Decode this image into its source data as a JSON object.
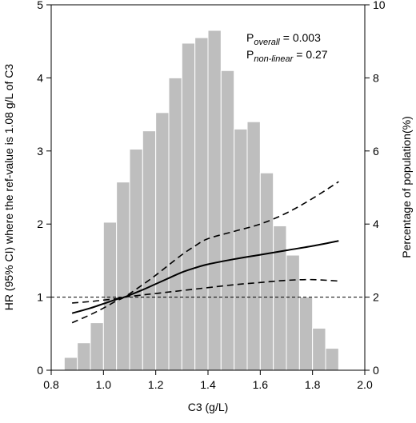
{
  "chart_data": {
    "type": "bar",
    "xlabel": "C3 (g/L)",
    "ylabel_left": "HR (95% CI) where the ref-value is 1.08 g/L of C3",
    "ylabel_right": "Percentage of population(%)",
    "xlim": [
      0.8,
      2.0
    ],
    "ylim_left": [
      0,
      5
    ],
    "ylim_right": [
      0,
      10
    ],
    "x_ticks": [
      "0.8",
      "1.0",
      "1.2",
      "1.4",
      "1.6",
      "1.8",
      "2.0"
    ],
    "y_ticks_left": [
      "0",
      "1",
      "2",
      "3",
      "4",
      "5"
    ],
    "y_ticks_right": [
      "0",
      "2",
      "4",
      "6",
      "8",
      "10"
    ],
    "reference_line_hr": 1,
    "histogram": {
      "axis": "right",
      "color": "#bebebe",
      "bin_width": 0.05,
      "bin_centers": [
        0.875,
        0.925,
        0.975,
        1.025,
        1.075,
        1.125,
        1.175,
        1.225,
        1.275,
        1.325,
        1.375,
        1.425,
        1.475,
        1.525,
        1.575,
        1.625,
        1.675,
        1.725,
        1.775,
        1.825,
        1.875
      ],
      "values": [
        0.35,
        0.75,
        1.3,
        4.05,
        5.15,
        6.05,
        6.55,
        7.05,
        8.0,
        8.95,
        9.1,
        9.3,
        8.2,
        6.6,
        6.8,
        5.4,
        3.95,
        3.15,
        2.0,
        1.15,
        0.6
      ]
    },
    "series": [
      {
        "style": "solid",
        "axis": "left",
        "x": [
          0.88,
          0.95,
          1.0,
          1.05,
          1.08,
          1.15,
          1.2,
          1.25,
          1.3,
          1.35,
          1.4,
          1.5,
          1.6,
          1.7,
          1.8,
          1.9
        ],
        "y": [
          0.78,
          0.85,
          0.91,
          0.97,
          1.0,
          1.1,
          1.18,
          1.26,
          1.34,
          1.4,
          1.45,
          1.52,
          1.58,
          1.64,
          1.7,
          1.77
        ]
      },
      {
        "style": "dashed",
        "axis": "left",
        "x": [
          0.88,
          0.95,
          1.0,
          1.05,
          1.08,
          1.15,
          1.2,
          1.25,
          1.3,
          1.35,
          1.4,
          1.5,
          1.6,
          1.7,
          1.8,
          1.9
        ],
        "y": [
          0.65,
          0.76,
          0.85,
          0.95,
          1.0,
          1.17,
          1.3,
          1.44,
          1.58,
          1.7,
          1.8,
          1.9,
          2.0,
          2.15,
          2.35,
          2.58
        ]
      },
      {
        "style": "dashed",
        "axis": "left",
        "x": [
          0.88,
          0.95,
          1.0,
          1.05,
          1.08,
          1.15,
          1.2,
          1.25,
          1.3,
          1.35,
          1.4,
          1.5,
          1.6,
          1.7,
          1.8,
          1.9
        ],
        "y": [
          0.92,
          0.94,
          0.96,
          0.98,
          1.0,
          1.03,
          1.05,
          1.07,
          1.09,
          1.11,
          1.13,
          1.17,
          1.2,
          1.23,
          1.24,
          1.22
        ]
      }
    ],
    "annotations": [
      {
        "label": "P",
        "subscript": "overall",
        "value": "= 0.003"
      },
      {
        "label": "P",
        "subscript": "non-linear",
        "value": "= 0.27"
      }
    ]
  }
}
